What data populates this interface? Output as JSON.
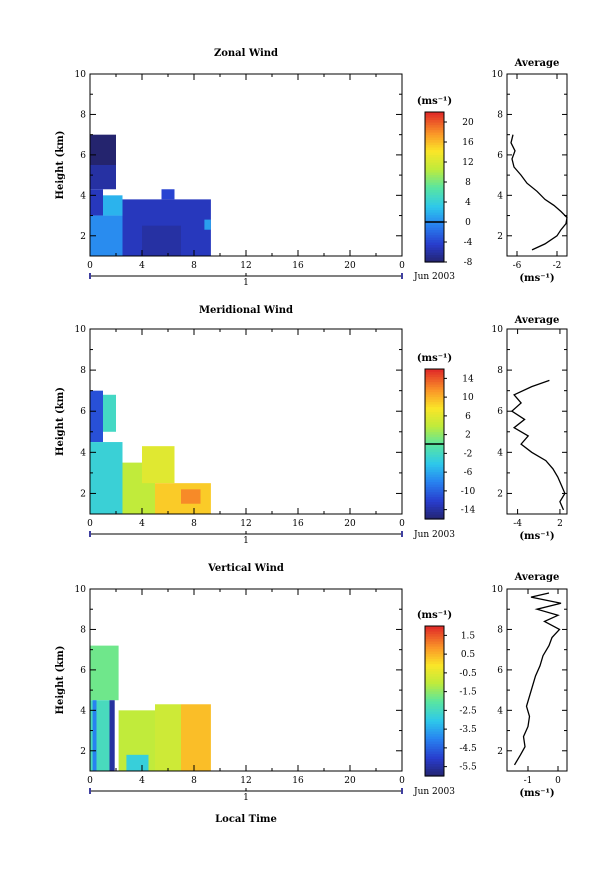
{
  "chart_data": [
    {
      "type": "heatmap",
      "title": "Zonal Wind",
      "xlabel": "",
      "ylabel": "Height (km)",
      "xlim": [
        0,
        24
      ],
      "ylim": [
        1,
        10
      ],
      "x_ticks": [
        "0",
        "4",
        "8",
        "12",
        "16",
        "20",
        "0"
      ],
      "y_ticks": [
        "2",
        "4",
        "6",
        "8",
        "10"
      ],
      "day_label": "1",
      "date_label": "Jun 2003",
      "colorbar": {
        "unit": "(ms⁻¹)",
        "range": [
          -8,
          22
        ],
        "ticks": [
          -8,
          -4,
          0,
          4,
          8,
          12,
          16,
          20
        ],
        "tick_labels": [
          "-8",
          "-4",
          "0",
          "4",
          "8",
          "12",
          "16",
          "20"
        ],
        "zero_line": 0
      },
      "regions": [
        {
          "t0": 0.0,
          "t1": 2.0,
          "h0": 5.5,
          "h1": 7.0,
          "value": -8
        },
        {
          "t0": 0.0,
          "t1": 2.0,
          "h0": 4.3,
          "h1": 5.5,
          "value": -6
        },
        {
          "t0": 0.0,
          "t1": 1.0,
          "h0": 3.0,
          "h1": 4.3,
          "value": -5
        },
        {
          "t0": 1.0,
          "t1": 2.5,
          "h0": 3.0,
          "h1": 4.0,
          "value": 2
        },
        {
          "t0": 0.0,
          "t1": 2.5,
          "h0": 1.0,
          "h1": 3.0,
          "value": 0
        },
        {
          "t0": 2.5,
          "t1": 9.3,
          "h0": 1.0,
          "h1": 3.8,
          "value": -5
        },
        {
          "t0": 4.0,
          "t1": 7.0,
          "h0": 1.0,
          "h1": 2.5,
          "value": -6
        },
        {
          "t0": 5.5,
          "t1": 6.5,
          "h0": 3.8,
          "h1": 4.3,
          "value": -4
        },
        {
          "t0": 8.8,
          "t1": 9.3,
          "h0": 2.3,
          "h1": 2.8,
          "value": 1
        }
      ],
      "profile": {
        "title": "Average",
        "xlabel": "(ms⁻¹)",
        "xlim": [
          -7,
          -1
        ],
        "x_ticks": [
          -6,
          -2
        ],
        "x_tick_labels": [
          "-6",
          "-2"
        ],
        "y_ticks": [
          "2",
          "4",
          "6",
          "8",
          "10"
        ],
        "heights": [
          1.3,
          1.6,
          2.0,
          2.3,
          2.6,
          2.9,
          3.2,
          3.5,
          3.8,
          4.2,
          4.6,
          5.0,
          5.4,
          5.8,
          6.2,
          6.6,
          7.0
        ],
        "values": [
          -4.5,
          -3.2,
          -2.0,
          -1.6,
          -1.1,
          -1.0,
          -1.6,
          -2.3,
          -3.2,
          -4.0,
          -5.0,
          -5.6,
          -6.3,
          -6.5,
          -6.2,
          -6.6,
          -6.4
        ]
      }
    },
    {
      "type": "heatmap",
      "title": "Meridional Wind",
      "xlabel": "",
      "ylabel": "Height (km)",
      "xlim": [
        0,
        24
      ],
      "ylim": [
        1,
        10
      ],
      "x_ticks": [
        "0",
        "4",
        "8",
        "12",
        "16",
        "20",
        "0"
      ],
      "y_ticks": [
        "2",
        "4",
        "6",
        "8",
        "10"
      ],
      "day_label": "1",
      "date_label": "Jun 2003",
      "colorbar": {
        "unit": "(ms⁻¹)",
        "range": [
          -16,
          16
        ],
        "ticks": [
          -14,
          -10,
          -6,
          -2,
          2,
          6,
          10,
          14
        ],
        "tick_labels": [
          "-14",
          "-10",
          "-6",
          "-2",
          "2",
          "6",
          "10",
          "14"
        ],
        "zero_line": 0
      },
      "regions": [
        {
          "t0": 0.0,
          "t1": 1.0,
          "h0": 4.5,
          "h1": 7.0,
          "value": -11
        },
        {
          "t0": 1.0,
          "t1": 2.0,
          "h0": 5.0,
          "h1": 6.8,
          "value": -2
        },
        {
          "t0": 0.0,
          "t1": 2.5,
          "h0": 1.0,
          "h1": 4.5,
          "value": -3
        },
        {
          "t0": 2.5,
          "t1": 5.0,
          "h0": 1.0,
          "h1": 3.5,
          "value": 4
        },
        {
          "t0": 4.0,
          "t1": 6.5,
          "h0": 2.5,
          "h1": 4.3,
          "value": 6
        },
        {
          "t0": 5.0,
          "t1": 9.3,
          "h0": 1.0,
          "h1": 2.5,
          "value": 9
        },
        {
          "t0": 7.0,
          "t1": 8.5,
          "h0": 1.5,
          "h1": 2.2,
          "value": 12
        }
      ],
      "profile": {
        "title": "Average",
        "xlabel": "(ms⁻¹)",
        "xlim": [
          -5.5,
          3
        ],
        "x_ticks": [
          -4,
          2
        ],
        "x_tick_labels": [
          "-4",
          "2"
        ],
        "y_ticks": [
          "2",
          "4",
          "6",
          "8",
          "10"
        ],
        "heights": [
          1.2,
          1.6,
          2.0,
          2.4,
          2.8,
          3.2,
          3.6,
          4.0,
          4.4,
          4.8,
          5.2,
          5.6,
          6.0,
          6.4,
          6.8,
          7.2,
          7.5
        ],
        "values": [
          2.5,
          2.0,
          2.7,
          2.2,
          1.7,
          1.0,
          0.0,
          -2.0,
          -3.5,
          -2.5,
          -4.5,
          -3.0,
          -4.8,
          -3.5,
          -4.5,
          -2.0,
          0.5
        ]
      }
    },
    {
      "type": "heatmap",
      "title": "Vertical Wind",
      "xlabel": "Local Time",
      "ylabel": "Height (km)",
      "xlim": [
        0,
        24
      ],
      "ylim": [
        1,
        10
      ],
      "x_ticks": [
        "0",
        "4",
        "8",
        "12",
        "16",
        "20",
        "0"
      ],
      "y_ticks": [
        "2",
        "4",
        "6",
        "8",
        "10"
      ],
      "day_label": "1",
      "date_label": "Jun 2003",
      "colorbar": {
        "unit": "(ms⁻¹)",
        "range": [
          -6,
          2
        ],
        "ticks": [
          -5.5,
          -4.5,
          -3.5,
          -2.5,
          -1.5,
          -0.5,
          0.5,
          1.5
        ],
        "tick_labels": [
          "-5.5",
          "-4.5",
          "-3.5",
          "-2.5",
          "-1.5",
          "-0.5",
          "0.5",
          "1.5"
        ],
        "zero_line": null
      },
      "regions": [
        {
          "t0": 0.0,
          "t1": 2.2,
          "h0": 4.5,
          "h1": 7.2,
          "value": -1.8
        },
        {
          "t0": 0.0,
          "t1": 1.5,
          "h0": 1.0,
          "h1": 4.5,
          "value": -2.4
        },
        {
          "t0": 1.5,
          "t1": 1.9,
          "h0": 1.0,
          "h1": 4.5,
          "value": -5.5
        },
        {
          "t0": 0.2,
          "t1": 0.5,
          "h0": 1.0,
          "h1": 4.5,
          "value": -4.0
        },
        {
          "t0": 2.2,
          "t1": 5.0,
          "h0": 1.0,
          "h1": 4.0,
          "value": -1.0
        },
        {
          "t0": 5.0,
          "t1": 7.0,
          "h0": 1.0,
          "h1": 4.3,
          "value": -0.8
        },
        {
          "t0": 7.0,
          "t1": 9.3,
          "h0": 1.0,
          "h1": 4.3,
          "value": 0.4
        },
        {
          "t0": 2.8,
          "t1": 4.5,
          "h0": 1.0,
          "h1": 1.8,
          "value": -2.8
        }
      ],
      "profile": {
        "title": "Average",
        "xlabel": "(ms⁻¹)",
        "xlim": [
          -1.7,
          0.3
        ],
        "x_ticks": [
          -1,
          0
        ],
        "x_tick_labels": [
          "-1",
          "0"
        ],
        "y_ticks": [
          "2",
          "4",
          "6",
          "8",
          "10"
        ],
        "heights": [
          1.3,
          1.8,
          2.2,
          2.7,
          3.2,
          3.7,
          4.2,
          4.7,
          5.2,
          5.7,
          6.2,
          6.7,
          7.2,
          7.6,
          8.0,
          8.4,
          8.7,
          9.0,
          9.3,
          9.6,
          9.8
        ],
        "values": [
          -1.45,
          -1.25,
          -1.1,
          -1.15,
          -1.0,
          -0.95,
          -1.05,
          -0.95,
          -0.85,
          -0.75,
          -0.6,
          -0.5,
          -0.3,
          -0.2,
          0.05,
          -0.45,
          0.0,
          -0.7,
          0.1,
          -0.9,
          -0.3
        ]
      }
    }
  ]
}
